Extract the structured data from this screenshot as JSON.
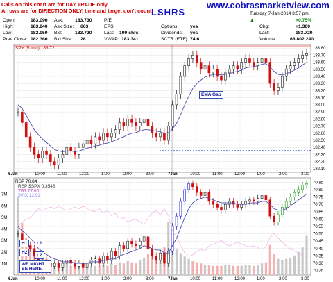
{
  "note_lines": [
    "Calls on this chart are for DAY TRADE only.",
    "Arrows are for DIRECTION ONLY, time and target don't count."
  ],
  "site": "www.cobrasmarketview.com",
  "symbol": "LSHRS",
  "header_cut": "Tuesday 7-Jan-2014 3:57 pm",
  "quote": {
    "open_label": "Open:",
    "open": "183.090",
    "high_label": "High:",
    "high": "183.840",
    "low_label": "Low:",
    "low": "182.950",
    "prev_label": "Prev Close:",
    "prev": "182.360",
    "ask_label": "Ask:",
    "ask": "183.730",
    "asksize_label": "Ask Size:",
    "asksize": "663",
    "bid_label": "Bid:",
    "bid": "183.720",
    "bidsize_label": "Bid Size:",
    "bidsize": "28",
    "pe_label": "P/E",
    "pe": "",
    "eps_label": "EPS:",
    "eps": "",
    "last_label": "Last:",
    "last": "100 shrs",
    "vwap_label": "VWAP:",
    "vwap": "183.341",
    "options_label": "Options:",
    "options": "yes",
    "div_label": "Dividends:",
    "div": "yes",
    "sctr_label": "SCTR (ETF):",
    "sctr": "74.6",
    "chg_label": "Chg:",
    "chg_pct": "+0.75%",
    "chg": "+1.360",
    "last2_label": "Last:",
    "last2": "183.720",
    "vol_label": "Volume:",
    "vol": "68,802,240"
  },
  "chart_data": [
    {
      "type": "line",
      "title": "SPY (5 min) 183.72",
      "yticks": [
        "183.80",
        "183.70",
        "183.60",
        "183.50",
        "183.40",
        "183.30",
        "183.20",
        "183.10",
        "183.00",
        "182.90",
        "182.80",
        "182.70",
        "182.60",
        "182.50",
        "182.40",
        "182.30",
        "182.20",
        "182.10"
      ],
      "ylim": [
        182.05,
        183.85
      ],
      "xticks": [
        "6Jan",
        "10:00",
        "11:00",
        "12:00",
        "1:00",
        "2:00",
        "3:00",
        "7Jan",
        "10:00",
        "11:00",
        "12:00",
        "1:00",
        "2:00",
        "3:00"
      ],
      "annotations": [
        "EMA Gap"
      ],
      "price": [
        182.9,
        182.75,
        182.55,
        182.4,
        182.3,
        182.25,
        182.35,
        182.3,
        182.2,
        182.15,
        182.25,
        182.3,
        182.4,
        182.35,
        182.3,
        182.4,
        182.45,
        182.5,
        182.45,
        182.55,
        182.5,
        182.6,
        182.55,
        182.6,
        182.65,
        182.75,
        182.7,
        182.8,
        182.75,
        182.7,
        182.75,
        182.8,
        182.7,
        182.6,
        182.55,
        182.6,
        182.5,
        182.7,
        183.0,
        183.15,
        183.4,
        183.55,
        183.65,
        183.7,
        183.6,
        183.5,
        183.55,
        183.45,
        183.5,
        183.4,
        183.35,
        183.45,
        183.5,
        183.55,
        183.5,
        183.6,
        183.65,
        183.6,
        183.55,
        183.6,
        183.65,
        183.6,
        183.3,
        183.2,
        183.25,
        183.4,
        183.5,
        183.55,
        183.6,
        183.65,
        183.7,
        183.72
      ],
      "ema": [
        183.0,
        182.95,
        182.85,
        182.75,
        182.65,
        182.58,
        182.52,
        182.47,
        182.42,
        182.37,
        182.35,
        182.34,
        182.35,
        182.35,
        182.34,
        182.35,
        182.37,
        182.39,
        182.4,
        182.42,
        182.43,
        182.45,
        182.46,
        182.48,
        182.5,
        182.53,
        182.55,
        182.58,
        182.6,
        182.61,
        182.63,
        182.65,
        182.65,
        182.64,
        182.63,
        182.62,
        182.6,
        182.61,
        182.66,
        182.74,
        182.86,
        183.0,
        183.12,
        183.23,
        183.3,
        183.35,
        183.39,
        183.41,
        183.43,
        183.43,
        183.42,
        183.43,
        183.44,
        183.46,
        183.47,
        183.49,
        183.52,
        183.53,
        183.54,
        183.55,
        183.57,
        183.58,
        183.53,
        183.47,
        183.43,
        183.42,
        183.44,
        183.46,
        183.49,
        183.52,
        183.56,
        183.6
      ]
    },
    {
      "type": "line",
      "title": "RSP 70.84",
      "legend": [
        "RSP:$SPX 0.3546",
        "TBT 77.65",
        "$VIX 12.92"
      ],
      "yticks": [
        "70.85",
        "70.80",
        "70.75",
        "70.70",
        "70.65",
        "70.60",
        "70.55",
        "70.50",
        "70.45",
        "70.40",
        "70.35",
        "70.30",
        "70.25"
      ],
      "vol_ticks": [
        "7M",
        "6M",
        "5M",
        "4M",
        "3M",
        "2M",
        "1M"
      ],
      "ylim": [
        70.22,
        70.88
      ],
      "annotations": [
        "H1",
        "H2",
        "L1",
        "L2",
        "WE MIGHT BE HERE."
      ],
      "price": [
        70.5,
        70.45,
        70.42,
        70.4,
        70.35,
        70.3,
        70.32,
        70.3,
        70.28,
        70.3,
        70.27,
        70.3,
        70.32,
        70.3,
        70.28,
        70.3,
        70.27,
        70.3,
        70.32,
        70.33,
        70.3,
        70.35,
        70.32,
        70.38,
        70.35,
        70.42,
        70.4,
        70.45,
        70.43,
        70.42,
        70.45,
        70.48,
        70.4,
        70.35,
        70.32,
        70.37,
        70.3,
        70.38,
        70.55,
        70.62,
        70.72,
        70.8,
        70.84,
        70.82,
        70.78,
        70.76,
        70.78,
        70.72,
        70.7,
        70.68,
        70.66,
        70.7,
        70.72,
        70.7,
        70.68,
        70.7,
        70.72,
        70.73,
        70.72,
        70.74,
        70.76,
        70.73,
        70.62,
        70.58,
        70.63,
        70.68,
        70.72,
        70.75,
        70.78,
        70.8,
        70.83,
        70.84
      ],
      "ema": [
        70.55,
        70.52,
        70.5,
        70.47,
        70.44,
        70.4,
        70.38,
        70.36,
        70.34,
        70.33,
        70.32,
        70.31,
        70.31,
        70.31,
        70.3,
        70.3,
        70.3,
        70.3,
        70.31,
        70.31,
        70.31,
        70.32,
        70.32,
        70.33,
        70.33,
        70.35,
        70.36,
        70.37,
        70.38,
        70.39,
        70.4,
        70.42,
        70.41,
        70.4,
        70.39,
        70.39,
        70.37,
        70.37,
        70.42,
        70.47,
        70.54,
        70.61,
        70.67,
        70.71,
        70.73,
        70.74,
        70.75,
        70.74,
        70.73,
        70.72,
        70.71,
        70.71,
        70.71,
        70.71,
        70.7,
        70.7,
        70.7,
        70.71,
        70.71,
        70.71,
        70.72,
        70.72,
        70.7,
        70.67,
        70.66,
        70.66,
        70.67,
        70.69,
        70.71,
        70.73,
        70.75,
        70.77
      ],
      "volume": [
        6.8,
        4.5,
        3.2,
        2.6,
        2.2,
        1.8,
        1.6,
        1.4,
        1.2,
        1.1,
        1.0,
        0.9,
        1.0,
        0.8,
        0.8,
        0.9,
        0.7,
        0.8,
        0.7,
        0.8,
        0.8,
        0.9,
        0.8,
        1.0,
        0.9,
        1.1,
        1.0,
        1.2,
        1.1,
        1.0,
        1.3,
        1.5,
        1.8,
        2.0,
        1.6,
        1.4,
        2.4,
        4.6,
        3.0,
        2.3,
        1.9,
        1.6,
        1.4,
        1.2,
        1.1,
        1.0,
        0.9,
        0.9,
        0.8,
        0.8,
        0.8,
        0.9,
        0.9,
        0.8,
        0.8,
        0.8,
        0.9,
        0.9,
        0.8,
        0.9,
        1.0,
        1.1,
        2.6,
        1.8,
        1.4,
        1.3,
        1.4,
        1.5,
        1.7,
        2.0,
        2.4,
        3.4
      ]
    }
  ]
}
